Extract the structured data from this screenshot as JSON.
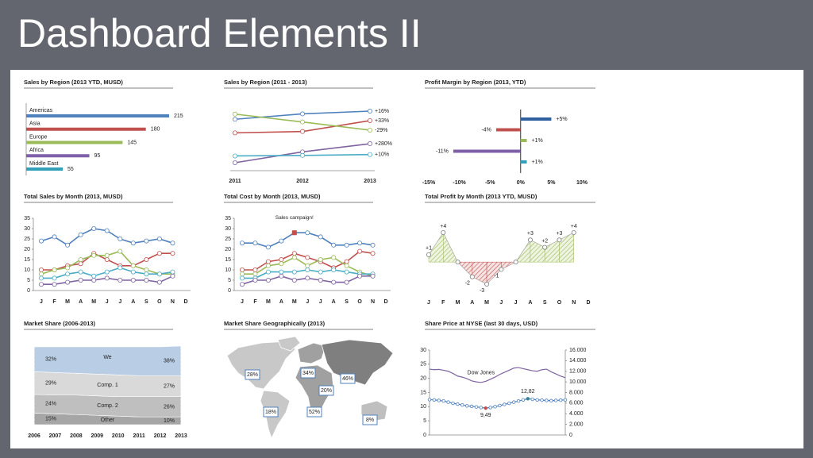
{
  "title": "Dashboard Elements II",
  "chart_data": [
    {
      "type": "bar",
      "title": "Sales by Region (2013 YTD, MUSD)",
      "categories": [
        "Americas",
        "Asia",
        "Europe",
        "Africa",
        "Middle East"
      ],
      "values": [
        215,
        180,
        145,
        95,
        55
      ],
      "colors": [
        "#4f81bd",
        "#c0504d",
        "#9bbb59",
        "#7f5fa8",
        "#31a0b8"
      ]
    },
    {
      "type": "line",
      "title": "Sales by Region (2011 - 2013)",
      "categories": [
        "2011",
        "2012",
        "2013"
      ],
      "series": [
        {
          "color": "#4f81bd",
          "values": [
            185,
            205,
            215
          ],
          "label": "+16%"
        },
        {
          "color": "#c0504d",
          "values": [
            135,
            140,
            180
          ],
          "label": "+33%"
        },
        {
          "color": "#9bbb59",
          "values": [
            204,
            175,
            145
          ],
          "label": "-29%"
        },
        {
          "color": "#8064a2",
          "values": [
            25,
            65,
            95
          ],
          "label": "+280%"
        },
        {
          "color": "#4bacc6",
          "values": [
            50,
            52,
            55
          ],
          "label": "+10%"
        }
      ]
    },
    {
      "type": "bar",
      "title": "Profit Margin by Region (2013, YTD)",
      "values": [
        5,
        -4,
        1,
        -11,
        1
      ],
      "value_labels": [
        "+5%",
        "-4%",
        "+1%",
        "-11%",
        "+1%"
      ],
      "colors": [
        "#2e5f9e",
        "#c0504d",
        "#9bbb59",
        "#7f5fa8",
        "#31a0b8"
      ],
      "xlim": [
        -15,
        10
      ],
      "xticks": [
        {
          "value": -15,
          "label": "-15%"
        },
        {
          "value": -10,
          "label": "-10%"
        },
        {
          "value": -5,
          "label": "-5%"
        },
        {
          "value": 0,
          "label": "0%"
        },
        {
          "value": 5,
          "label": "5%"
        },
        {
          "value": 10,
          "label": "10%"
        }
      ]
    },
    {
      "type": "line",
      "title": "Total Sales by Month (2013, MUSD)",
      "categories": [
        "J",
        "F",
        "M",
        "A",
        "M",
        "J",
        "J",
        "A",
        "S",
        "O",
        "N",
        "D"
      ],
      "ylim": [
        0,
        35
      ],
      "yticks": [
        0,
        5,
        10,
        15,
        20,
        25,
        30,
        35
      ],
      "series": [
        {
          "color": "#4f81bd",
          "values": [
            24,
            26,
            22,
            27,
            30,
            29,
            25,
            23,
            24,
            25,
            23,
            null
          ]
        },
        {
          "color": "#c0504d",
          "values": [
            10,
            10,
            12,
            13,
            18,
            15,
            12,
            12,
            15,
            18,
            18,
            null
          ]
        },
        {
          "color": "#9bbb59",
          "values": [
            8,
            10,
            11,
            15,
            17,
            17,
            19,
            12,
            10,
            8,
            8,
            null
          ]
        },
        {
          "color": "#4bacc6",
          "values": [
            6,
            6,
            8,
            9,
            7,
            9,
            11,
            9,
            8,
            8,
            9,
            null
          ]
        },
        {
          "color": "#8064a2",
          "values": [
            3,
            3,
            4,
            5,
            5,
            6,
            5,
            5,
            5,
            4,
            7,
            null
          ]
        }
      ]
    },
    {
      "type": "line",
      "title": "Total Cost by Month (2013, MUSD)",
      "categories": [
        "J",
        "F",
        "M",
        "A",
        "M",
        "J",
        "J",
        "A",
        "S",
        "O",
        "N",
        "D"
      ],
      "ylim": [
        0,
        35
      ],
      "yticks": [
        0,
        5,
        10,
        15,
        20,
        25,
        30,
        35
      ],
      "annotation": "Sales campaign!",
      "series": [
        {
          "color": "#4f81bd",
          "values": [
            23,
            23,
            21,
            24,
            28,
            28,
            26,
            22,
            22,
            23,
            22,
            null
          ]
        },
        {
          "color": "#c0504d",
          "values": [
            10,
            10,
            14,
            15,
            18,
            16,
            14,
            11,
            14,
            19,
            18,
            null
          ]
        },
        {
          "color": "#9bbb59",
          "values": [
            8,
            8,
            12,
            13,
            16,
            12,
            15,
            16,
            12,
            9,
            7,
            null
          ]
        },
        {
          "color": "#4bacc6",
          "values": [
            6,
            6,
            9,
            9,
            9,
            10,
            9,
            10,
            9,
            8,
            8,
            null
          ]
        },
        {
          "color": "#8064a2",
          "values": [
            3,
            5,
            5,
            7,
            5,
            6,
            5,
            4,
            4,
            7,
            7,
            null
          ]
        }
      ]
    },
    {
      "type": "area",
      "title": "Total Profit by Month (2013 YTD, MUSD)",
      "categories": [
        "J",
        "F",
        "M",
        "A",
        "M",
        "J",
        "J",
        "A",
        "S",
        "O",
        "N",
        "D"
      ],
      "values": [
        1,
        4,
        0,
        -2,
        -3,
        -1,
        0,
        3,
        2,
        3,
        4,
        null
      ],
      "value_labels": [
        "+1",
        "+4",
        null,
        "-2",
        "-3",
        "-1",
        null,
        "+3",
        "+2",
        "+3",
        "+4",
        null
      ],
      "positive_color": "#9bbb59",
      "negative_color": "#c0504d"
    },
    {
      "type": "area",
      "stacked": true,
      "title": "Market Share (2006-2013)",
      "categories": [
        "2006",
        "2007",
        "2008",
        "2009",
        "2010",
        "2011",
        "2012",
        "2013"
      ],
      "series": [
        {
          "name": "We",
          "color": "#b9cde5",
          "values": [
            32,
            33,
            34,
            35,
            36,
            37,
            37,
            38
          ],
          "value_labels": [
            "32%",
            null,
            null,
            null,
            null,
            null,
            null,
            "38%"
          ]
        },
        {
          "name": "Comp. 1",
          "color": "#d9d9d9",
          "values": [
            29,
            29,
            28,
            28,
            28,
            27,
            27,
            27
          ],
          "value_labels": [
            "29%",
            null,
            null,
            null,
            null,
            null,
            null,
            "27%"
          ]
        },
        {
          "name": "Comp. 2",
          "color": "#bfbfbf",
          "values": [
            24,
            24,
            25,
            25,
            25,
            26,
            26,
            26
          ],
          "value_labels": [
            "24%",
            null,
            null,
            null,
            null,
            null,
            null,
            "26%"
          ]
        },
        {
          "name": "Other",
          "color": "#a6a6a6",
          "values": [
            15,
            14,
            13,
            12,
            11,
            10,
            10,
            10
          ],
          "value_labels": [
            "15%",
            null,
            null,
            null,
            null,
            null,
            null,
            "10%"
          ]
        }
      ]
    },
    {
      "type": "map",
      "title": "Market Share Geographically (2013)",
      "values": [
        28,
        34,
        46,
        20,
        18,
        52,
        8
      ],
      "value_labels": [
        "28%",
        "34%",
        "46%",
        "20%",
        "18%",
        "52%",
        "8%"
      ]
    },
    {
      "type": "line",
      "title": "Share Price at NYSE (last 30 days, USD)",
      "ylim": [
        0,
        30
      ],
      "yticks": [
        0,
        5,
        10,
        15,
        20,
        25,
        30
      ],
      "y2lim": [
        0,
        16000
      ],
      "y2ticks": [
        0,
        {
          "value": 2000,
          "label": "2.000"
        },
        {
          "value": 4000,
          "label": "4.000"
        },
        {
          "value": 6000,
          "label": "6.000"
        },
        {
          "value": 8000,
          "label": "8.000"
        },
        {
          "value": 10000,
          "label": "10.000"
        },
        {
          "value": 12000,
          "label": "12.000"
        },
        {
          "value": 14000,
          "label": "14.000"
        },
        {
          "value": 16000,
          "label": "16.000"
        }
      ],
      "series": [
        {
          "name": "Dow Jones",
          "color": "#8064a2",
          "axis": "y2",
          "values": [
            12400,
            12300,
            12350,
            12200,
            12000,
            11600,
            11100,
            10900,
            10600,
            10200,
            10000,
            9900,
            10100,
            10500,
            10900,
            11400,
            11800,
            12200,
            12600,
            12700,
            12500,
            12300,
            12100,
            12000,
            12300,
            12400,
            11900,
            11500,
            11100,
            10800
          ]
        },
        {
          "color": "#4f81bd",
          "values": [
            12.5,
            12.4,
            12.2,
            12.0,
            11.6,
            11.2,
            10.9,
            10.6,
            10.3,
            10.1,
            9.9,
            9.7,
            9.49,
            9.7,
            10.0,
            10.4,
            10.8,
            11.2,
            11.6,
            12.0,
            12.4,
            12.82,
            12.6,
            12.4,
            12.3,
            12.2,
            12.1,
            12.2,
            12.3,
            12.4
          ],
          "value_labels": [
            null,
            null,
            null,
            null,
            null,
            null,
            null,
            null,
            null,
            null,
            null,
            null,
            "9,49",
            null,
            null,
            null,
            null,
            null,
            null,
            null,
            null,
            "12,82",
            null,
            null,
            null,
            null,
            null,
            null,
            null,
            null
          ]
        }
      ]
    }
  ]
}
